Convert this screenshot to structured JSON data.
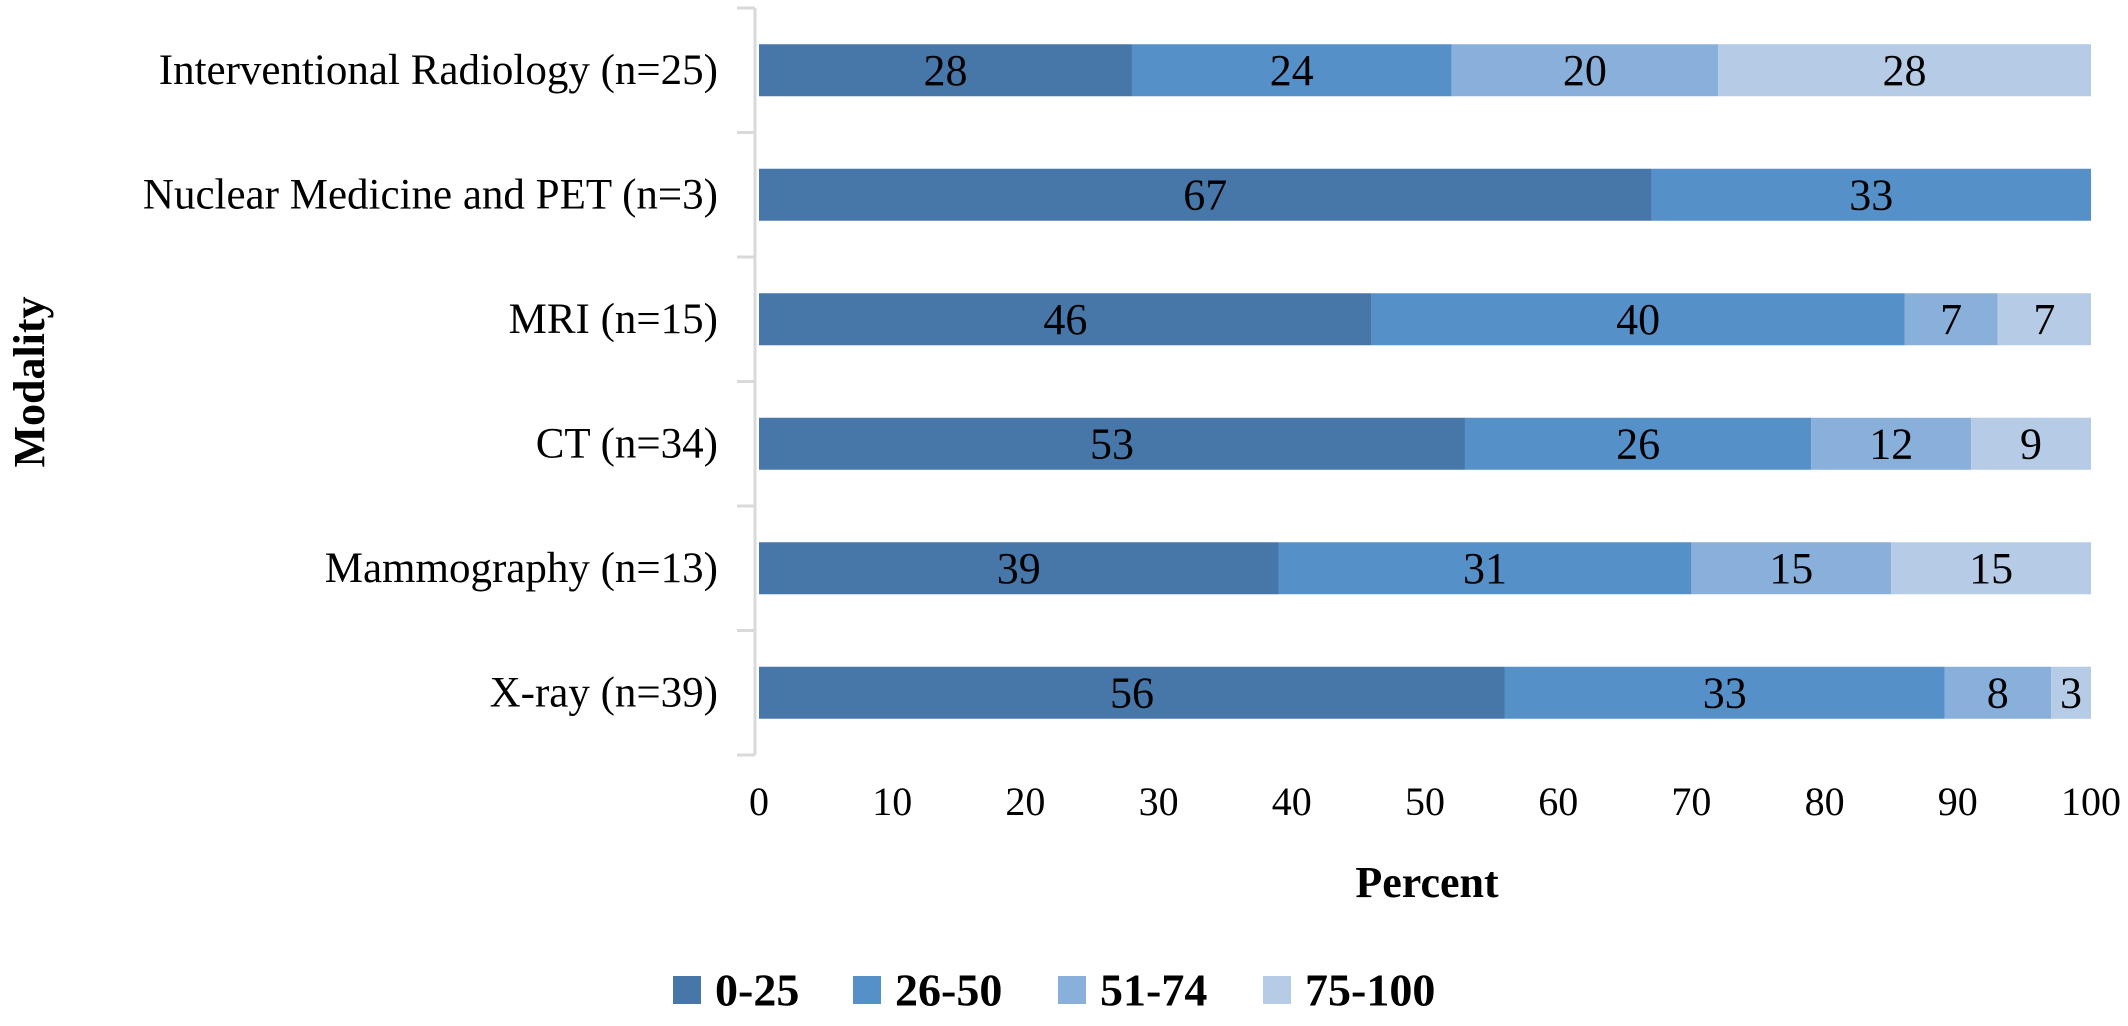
{
  "chart_data": {
    "type": "bar",
    "orientation": "horizontal",
    "stacked": true,
    "categories": [
      "Interventional Radiology (n=25)",
      "Nuclear Medicine and PET (n=3)",
      "MRI (n=15)",
      "CT (n=34)",
      "Mammography (n=13)",
      "X-ray (n=39)"
    ],
    "series": [
      {
        "name": "0-25",
        "color": "#4677a8",
        "values": [
          28,
          67,
          46,
          53,
          39,
          56
        ]
      },
      {
        "name": "26-50",
        "color": "#5690c8",
        "values": [
          24,
          33,
          40,
          26,
          31,
          33
        ]
      },
      {
        "name": "51-74",
        "color": "#89afdb",
        "values": [
          20,
          0,
          7,
          12,
          15,
          8
        ]
      },
      {
        "name": "75-100",
        "color": "#b6cbe6",
        "values": [
          28,
          0,
          7,
          9,
          15,
          3
        ]
      }
    ],
    "xlabel": "Percent",
    "ylabel": "Modality",
    "xlim": [
      0,
      100
    ],
    "xticks": [
      "0",
      "10",
      "20",
      "30",
      "40",
      "50",
      "60",
      "70",
      "80",
      "90",
      "100"
    ],
    "grid": false,
    "legend": "bottom"
  }
}
